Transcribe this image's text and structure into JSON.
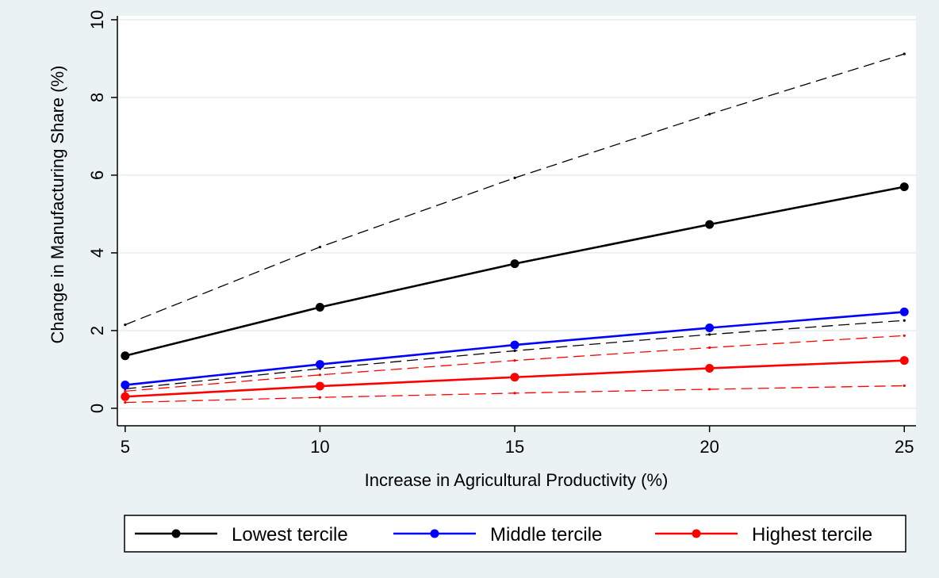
{
  "chart_data": {
    "type": "line",
    "xlabel": "Increase in Agricultural Productivity (%)",
    "ylabel": "Change in Manufacturing Share (%)",
    "xlim": [
      4.8,
      25.3
    ],
    "ylim": [
      -0.45,
      10.1
    ],
    "xticks": [
      5,
      10,
      15,
      20,
      25
    ],
    "yticks": [
      0,
      2,
      4,
      6,
      8,
      10
    ],
    "x": [
      5,
      10,
      15,
      20,
      25
    ],
    "grid": "horizontal",
    "legend_position": "bottom",
    "series": [
      {
        "name": "Lowest tercile",
        "color": "#000000",
        "values": [
          1.35,
          2.6,
          3.72,
          4.73,
          5.7
        ],
        "ci_upper": [
          2.15,
          4.15,
          5.93,
          7.57,
          9.12
        ],
        "ci_lower": [
          0.5,
          1.02,
          1.48,
          1.9,
          2.26
        ]
      },
      {
        "name": "Middle tercile",
        "color": "#0000ff",
        "values": [
          0.6,
          1.13,
          1.63,
          2.07,
          2.48
        ],
        "ci_upper": null,
        "ci_lower": null
      },
      {
        "name": "Highest tercile",
        "color": "#ff0000",
        "values": [
          0.3,
          0.57,
          0.8,
          1.03,
          1.23
        ],
        "ci_upper": [
          0.44,
          0.86,
          1.23,
          1.56,
          1.87
        ],
        "ci_lower": [
          0.15,
          0.28,
          0.39,
          0.49,
          0.58
        ]
      }
    ]
  }
}
